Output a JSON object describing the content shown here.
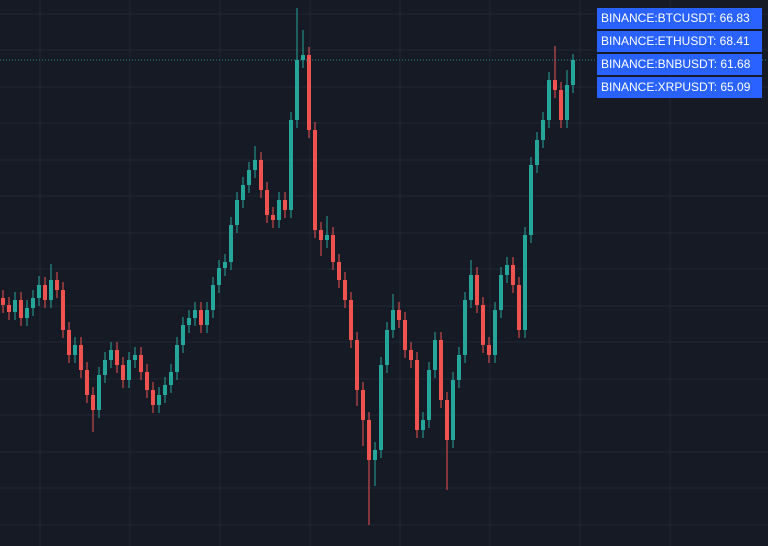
{
  "chart_data": {
    "type": "candlestick",
    "legend": [
      "BINANCE:BTCUSDT: 66.83",
      "BINANCE:ETHUSDT: 68.41",
      "BINANCE:BNBUSDT: 61.68",
      "BINANCE:XRPUSDT: 65.09"
    ],
    "up_color": "#26a69a",
    "down_color": "#ef5350",
    "legend_color": "#2962ff",
    "ylim": [
      0,
      546
    ],
    "open": [
      248,
      241,
      234,
      246,
      228,
      238,
      248,
      261,
      246,
      266,
      256,
      216,
      191,
      201,
      176,
      151,
      136,
      171,
      186,
      196,
      181,
      166,
      186,
      191,
      174,
      156,
      141,
      151,
      161,
      174,
      201,
      221,
      228,
      236,
      221,
      236,
      261,
      278,
      284,
      321,
      346,
      361,
      376,
      386,
      356,
      331,
      326,
      346,
      336,
      426,
      486,
      491,
      416,
      316,
      306,
      311,
      284,
      266,
      246,
      206,
      156,
      126,
      86,
      96,
      181,
      216,
      236,
      226,
      196,
      186,
      116,
      126,
      176,
      206,
      146,
      106,
      166,
      191,
      246,
      271,
      241,
      201,
      191,
      236,
      271,
      281,
      261,
      216,
      311,
      381,
      406,
      426,
      466,
      456,
      426,
      461
    ],
    "high": [
      256,
      249,
      254,
      254,
      246,
      256,
      270,
      269,
      282,
      274,
      264,
      224,
      209,
      209,
      184,
      159,
      179,
      194,
      204,
      204,
      189,
      194,
      199,
      199,
      182,
      164,
      159,
      169,
      182,
      209,
      229,
      236,
      244,
      244,
      244,
      269,
      286,
      292,
      329,
      354,
      369,
      384,
      400,
      394,
      364,
      339,
      354,
      354,
      434,
      538,
      516,
      499,
      424,
      324,
      330,
      319,
      292,
      274,
      254,
      214,
      164,
      134,
      104,
      189,
      224,
      252,
      244,
      234,
      204,
      194,
      134,
      184,
      214,
      214,
      154,
      174,
      199,
      254,
      286,
      279,
      249,
      209,
      244,
      279,
      289,
      289,
      269,
      319,
      389,
      414,
      434,
      474,
      500,
      464,
      476,
      492
    ],
    "low": [
      233,
      226,
      226,
      220,
      220,
      230,
      240,
      238,
      238,
      248,
      208,
      183,
      183,
      168,
      143,
      114,
      128,
      163,
      178,
      173,
      158,
      158,
      178,
      166,
      148,
      133,
      133,
      143,
      153,
      166,
      193,
      213,
      220,
      213,
      213,
      228,
      253,
      270,
      276,
      313,
      338,
      353,
      368,
      348,
      323,
      318,
      318,
      328,
      328,
      418,
      478,
      408,
      308,
      290,
      298,
      276,
      258,
      238,
      198,
      140,
      100,
      21,
      60,
      88,
      173,
      208,
      218,
      188,
      178,
      108,
      108,
      118,
      168,
      138,
      56,
      98,
      158,
      183,
      238,
      233,
      193,
      183,
      183,
      228,
      263,
      253,
      208,
      208,
      303,
      373,
      398,
      418,
      448,
      418,
      418,
      453
    ],
    "close": [
      241,
      234,
      246,
      228,
      238,
      248,
      261,
      246,
      266,
      256,
      216,
      191,
      201,
      176,
      151,
      136,
      171,
      186,
      196,
      181,
      166,
      186,
      191,
      174,
      156,
      141,
      151,
      161,
      174,
      201,
      221,
      228,
      236,
      221,
      236,
      261,
      278,
      284,
      321,
      346,
      361,
      376,
      386,
      356,
      331,
      326,
      346,
      336,
      426,
      486,
      491,
      416,
      316,
      306,
      311,
      284,
      266,
      246,
      206,
      156,
      126,
      86,
      96,
      181,
      216,
      236,
      226,
      196,
      186,
      116,
      126,
      176,
      206,
      146,
      106,
      166,
      191,
      246,
      271,
      241,
      201,
      191,
      236,
      271,
      281,
      261,
      216,
      311,
      381,
      406,
      426,
      466,
      456,
      426,
      461,
      486
    ]
  }
}
